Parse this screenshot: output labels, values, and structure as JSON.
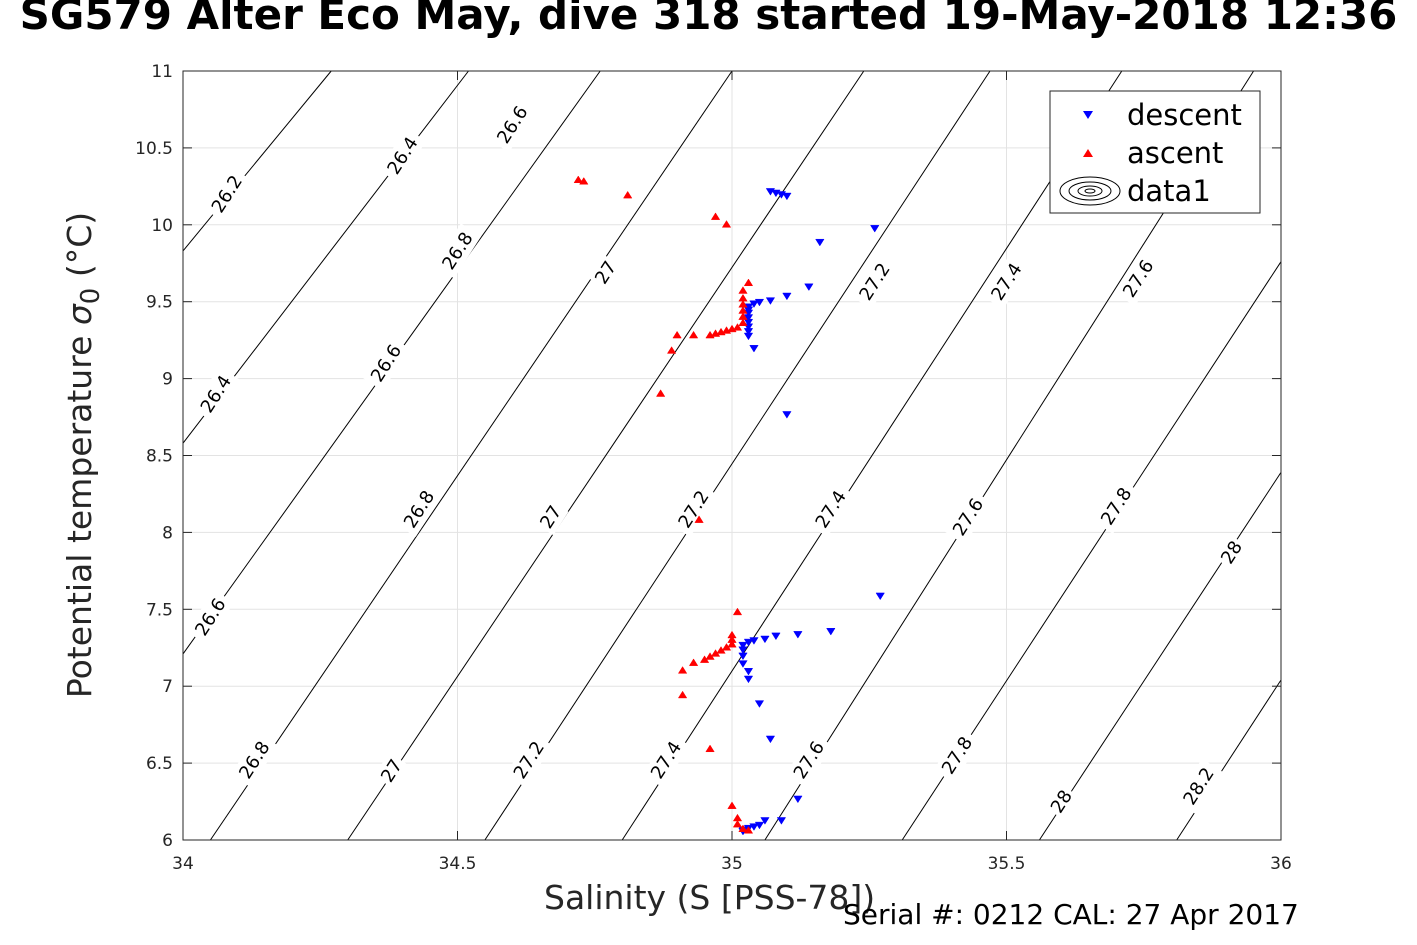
{
  "title": "SG579 Alter Eco May, dive 318 started 19-May-2018 12:36",
  "footer": "Serial #: 0212  CAL: 27 Apr 2017",
  "chart_data": {
    "type": "scatter",
    "title": "SG579 Alter Eco May, dive 318 started 19-May-2018 12:36",
    "xlabel": "Salinity (S [PSS-78])",
    "ylabel_main": "Potential temperature ",
    "ylabel_sigma": "σ",
    "ylabel_sub": "0",
    "ylabel_unit": " (°C)",
    "xlim": [
      34,
      36
    ],
    "ylim": [
      6,
      11
    ],
    "xticks": [
      "34",
      "34.5",
      "35",
      "35.5",
      "36"
    ],
    "yticks": [
      "6",
      "6.5",
      "7",
      "7.5",
      "8",
      "8.5",
      "9",
      "9.5",
      "10",
      "10.5",
      "11"
    ],
    "grid": true,
    "legend_position": "top-right",
    "legend": [
      "descent",
      "ascent",
      "data1"
    ],
    "series": [
      {
        "name": "descent",
        "marker": "triangle-down",
        "color": "#0000ff",
        "points": [
          [
            35.07,
            10.22
          ],
          [
            35.08,
            10.21
          ],
          [
            35.09,
            10.2
          ],
          [
            35.1,
            10.19
          ],
          [
            35.26,
            9.98
          ],
          [
            35.16,
            9.89
          ],
          [
            35.14,
            9.6
          ],
          [
            35.1,
            9.54
          ],
          [
            35.07,
            9.51
          ],
          [
            35.05,
            9.5
          ],
          [
            35.04,
            9.49
          ],
          [
            35.03,
            9.47
          ],
          [
            35.03,
            9.45
          ],
          [
            35.03,
            9.43
          ],
          [
            35.03,
            9.4
          ],
          [
            35.03,
            9.37
          ],
          [
            35.03,
            9.34
          ],
          [
            35.03,
            9.31
          ],
          [
            35.03,
            9.28
          ],
          [
            35.04,
            9.2
          ],
          [
            35.1,
            8.77
          ],
          [
            35.27,
            7.59
          ],
          [
            35.18,
            7.36
          ],
          [
            35.12,
            7.34
          ],
          [
            35.08,
            7.33
          ],
          [
            35.06,
            7.31
          ],
          [
            35.04,
            7.3
          ],
          [
            35.03,
            7.29
          ],
          [
            35.02,
            7.27
          ],
          [
            35.02,
            7.24
          ],
          [
            35.02,
            7.2
          ],
          [
            35.02,
            7.15
          ],
          [
            35.03,
            7.1
          ],
          [
            35.03,
            7.05
          ],
          [
            35.05,
            6.89
          ],
          [
            35.07,
            6.66
          ],
          [
            35.12,
            6.27
          ],
          [
            35.09,
            6.13
          ],
          [
            35.06,
            6.13
          ],
          [
            35.05,
            6.1
          ],
          [
            35.04,
            6.09
          ],
          [
            35.03,
            6.08
          ],
          [
            35.02,
            6.07
          ],
          [
            35.02,
            6.06
          ]
        ]
      },
      {
        "name": "ascent",
        "marker": "triangle-up",
        "color": "#ff0000",
        "points": [
          [
            34.72,
            10.29
          ],
          [
            34.73,
            10.28
          ],
          [
            34.81,
            10.19
          ],
          [
            34.97,
            10.05
          ],
          [
            34.99,
            10.0
          ],
          [
            35.03,
            9.62
          ],
          [
            35.02,
            9.57
          ],
          [
            35.02,
            9.52
          ],
          [
            35.02,
            9.48
          ],
          [
            35.02,
            9.44
          ],
          [
            35.02,
            9.4
          ],
          [
            35.02,
            9.36
          ],
          [
            35.01,
            9.33
          ],
          [
            35.0,
            9.32
          ],
          [
            34.99,
            9.31
          ],
          [
            34.98,
            9.3
          ],
          [
            34.97,
            9.29
          ],
          [
            34.96,
            9.28
          ],
          [
            34.93,
            9.28
          ],
          [
            34.9,
            9.28
          ],
          [
            34.89,
            9.18
          ],
          [
            34.87,
            8.9
          ],
          [
            34.94,
            8.08
          ],
          [
            35.01,
            7.48
          ],
          [
            35.0,
            7.33
          ],
          [
            35.0,
            7.3
          ],
          [
            35.0,
            7.27
          ],
          [
            34.99,
            7.25
          ],
          [
            34.98,
            7.23
          ],
          [
            34.97,
            7.21
          ],
          [
            34.96,
            7.19
          ],
          [
            34.95,
            7.17
          ],
          [
            34.93,
            7.15
          ],
          [
            34.91,
            7.1
          ],
          [
            34.91,
            6.94
          ],
          [
            34.96,
            6.59
          ],
          [
            35.0,
            6.22
          ],
          [
            35.01,
            6.14
          ],
          [
            35.01,
            6.1
          ],
          [
            35.02,
            6.07
          ],
          [
            35.03,
            6.06
          ]
        ]
      }
    ],
    "contours": [
      {
        "label": "26.2",
        "pts": [
          [
            34.0,
            9.83
          ],
          [
            34.27,
            11.0
          ]
        ]
      },
      {
        "label": "26.4",
        "pts": [
          [
            34.0,
            8.58
          ],
          [
            34.52,
            11.0
          ]
        ]
      },
      {
        "label": "26.6",
        "pts": [
          [
            34.0,
            7.21
          ],
          [
            34.76,
            11.0
          ]
        ]
      },
      {
        "label": "26.8",
        "pts": [
          [
            34.05,
            6.0
          ],
          [
            35.0,
            11.0
          ]
        ]
      },
      {
        "label": "27",
        "pts": [
          [
            34.3,
            6.0
          ],
          [
            35.24,
            11.0
          ]
        ]
      },
      {
        "label": "27.2",
        "pts": [
          [
            34.55,
            6.0
          ],
          [
            35.47,
            11.0
          ]
        ]
      },
      {
        "label": "27.4",
        "pts": [
          [
            34.8,
            6.0
          ],
          [
            35.71,
            11.0
          ]
        ]
      },
      {
        "label": "27.6",
        "pts": [
          [
            35.06,
            6.0
          ],
          [
            35.95,
            11.0
          ]
        ]
      },
      {
        "label": "27.8",
        "pts": [
          [
            35.31,
            6.0
          ],
          [
            36.0,
            9.76
          ]
        ]
      },
      {
        "label": "28",
        "pts": [
          [
            35.56,
            6.0
          ],
          [
            36.0,
            8.39
          ]
        ]
      },
      {
        "label": "28.2",
        "pts": [
          [
            35.81,
            6.0
          ],
          [
            36.0,
            7.04
          ]
        ]
      }
    ],
    "contour_labels": [
      {
        "label": "26.2",
        "at": [
          34.08,
          10.2
        ]
      },
      {
        "label": "26.4",
        "at": [
          34.4,
          10.45
        ]
      },
      {
        "label": "26.6",
        "at": [
          34.6,
          10.65
        ]
      },
      {
        "label": "26.4",
        "at": [
          34.06,
          8.9
        ]
      },
      {
        "label": "26.8",
        "at": [
          34.5,
          9.83
        ]
      },
      {
        "label": "26.6",
        "at": [
          34.37,
          9.1
        ]
      },
      {
        "label": "27",
        "at": [
          34.77,
          9.69
        ]
      },
      {
        "label": "26.6",
        "at": [
          34.05,
          7.45
        ]
      },
      {
        "label": "26.8",
        "at": [
          34.43,
          8.15
        ]
      },
      {
        "label": "27.2",
        "at": [
          35.26,
          9.63
        ]
      },
      {
        "label": "27",
        "at": [
          34.67,
          8.1
        ]
      },
      {
        "label": "27.2",
        "at": [
          34.93,
          8.15
        ]
      },
      {
        "label": "27.4",
        "at": [
          35.5,
          9.63
        ]
      },
      {
        "label": "27.4",
        "at": [
          35.18,
          8.15
        ]
      },
      {
        "label": "27.6",
        "at": [
          35.74,
          9.65
        ]
      },
      {
        "label": "27.6",
        "at": [
          35.43,
          8.1
        ]
      },
      {
        "label": "27.8",
        "at": [
          35.7,
          8.17
        ]
      },
      {
        "label": "28",
        "at": [
          35.91,
          7.87
        ]
      },
      {
        "label": "26.8",
        "at": [
          34.13,
          6.52
        ]
      },
      {
        "label": "27",
        "at": [
          34.38,
          6.45
        ]
      },
      {
        "label": "27.2",
        "at": [
          34.63,
          6.52
        ]
      },
      {
        "label": "27.4",
        "at": [
          34.88,
          6.52
        ]
      },
      {
        "label": "27.6",
        "at": [
          35.14,
          6.52
        ]
      },
      {
        "label": "27.8",
        "at": [
          35.41,
          6.55
        ]
      },
      {
        "label": "28",
        "at": [
          35.6,
          6.25
        ]
      },
      {
        "label": "28.2",
        "at": [
          35.85,
          6.35
        ]
      }
    ]
  }
}
